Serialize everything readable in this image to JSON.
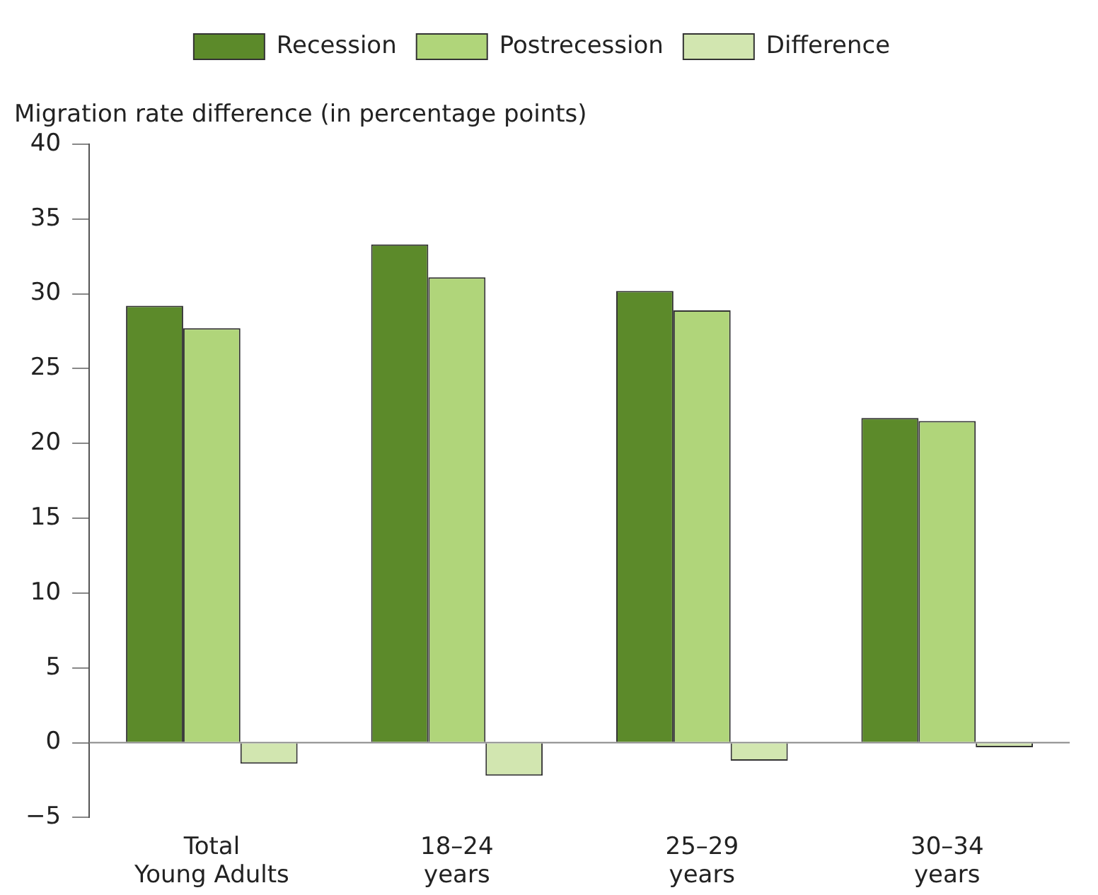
{
  "chart_data": {
    "type": "bar",
    "ylabel": "Migration rate difference (in percentage points)",
    "categories": [
      "Total\nYoung Adults",
      "18–24\nyears",
      "25–29\nyears",
      "30–34\nyears"
    ],
    "series": [
      {
        "name": "Recession",
        "color": "#5c8a2a",
        "values": [
          29.2,
          33.3,
          30.2,
          21.7
        ]
      },
      {
        "name": "Postrecession",
        "color": "#b0d57a",
        "values": [
          27.7,
          31.1,
          28.9,
          21.5
        ]
      },
      {
        "name": "Difference",
        "color": "#d2e6b0",
        "values": [
          -1.4,
          -2.2,
          -1.2,
          -0.3
        ]
      }
    ],
    "ylim": [
      -5,
      40
    ],
    "yticks": [
      {
        "value": -5,
        "label": "−5"
      },
      0,
      5,
      10,
      15,
      20,
      25,
      30,
      35,
      40
    ],
    "legend": "top"
  }
}
